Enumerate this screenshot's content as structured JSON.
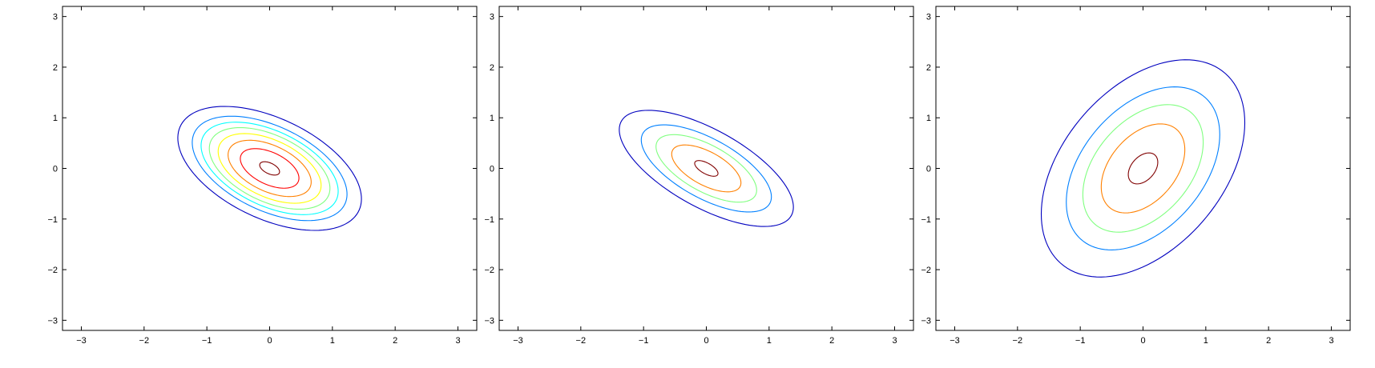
{
  "chart_data": [
    {
      "type": "contour",
      "title": "",
      "xlabel": "",
      "ylabel": "",
      "xlim": [
        -3.3,
        3.3
      ],
      "ylim": [
        -3.2,
        3.2
      ],
      "xticks": [
        -3,
        -2,
        -1,
        0,
        1,
        2,
        3
      ],
      "yticks": [
        -3,
        -2,
        -1,
        0,
        1,
        2,
        3
      ],
      "grid": false,
      "center": [
        0,
        0
      ],
      "orientation_deg": -35,
      "levels": [
        {
          "color": "#800000",
          "semi_axes": [
            0.18,
            0.1
          ]
        },
        {
          "color": "#ff0000",
          "semi_axes": [
            0.53,
            0.3
          ]
        },
        {
          "color": "#ff8000",
          "semi_axes": [
            0.75,
            0.43
          ]
        },
        {
          "color": "#ffff00",
          "semi_axes": [
            0.93,
            0.53
          ]
        },
        {
          "color": "#80ff80",
          "semi_axes": [
            1.09,
            0.62
          ]
        },
        {
          "color": "#00ffff",
          "semi_axes": [
            1.24,
            0.7
          ]
        },
        {
          "color": "#0080ff",
          "semi_axes": [
            1.4,
            0.79
          ]
        },
        {
          "color": "#0000bf",
          "semi_axes": [
            1.66,
            0.94
          ]
        }
      ]
    },
    {
      "type": "contour",
      "title": "",
      "xlabel": "",
      "ylabel": "",
      "xlim": [
        -3.3,
        3.3
      ],
      "ylim": [
        -3.2,
        3.2
      ],
      "xticks": [
        -3,
        -2,
        -1,
        0,
        1,
        2,
        3
      ],
      "yticks": [
        -3,
        -2,
        -1,
        0,
        1,
        2,
        3
      ],
      "grid": false,
      "center": [
        0,
        0
      ],
      "orientation_deg": -37,
      "levels": [
        {
          "color": "#800000",
          "semi_axes": [
            0.22,
            0.1
          ]
        },
        {
          "color": "#ff8000",
          "semi_axes": [
            0.65,
            0.31
          ]
        },
        {
          "color": "#80ff80",
          "semi_axes": [
            0.95,
            0.43
          ]
        },
        {
          "color": "#0080ff",
          "semi_axes": [
            1.23,
            0.55
          ]
        },
        {
          "color": "#0000bf",
          "semi_axes": [
            1.65,
            0.72
          ]
        }
      ]
    },
    {
      "type": "contour",
      "title": "",
      "xlabel": "",
      "ylabel": "",
      "xlim": [
        -3.3,
        3.3
      ],
      "ylim": [
        -3.2,
        3.2
      ],
      "xticks": [
        -3,
        -2,
        -1,
        0,
        1,
        2,
        3
      ],
      "yticks": [
        -3,
        -2,
        -1,
        0,
        1,
        2,
        3
      ],
      "grid": false,
      "center": [
        0,
        0
      ],
      "orientation_deg": 62,
      "levels": [
        {
          "color": "#800000",
          "semi_axes": [
            0.33,
            0.2
          ]
        },
        {
          "color": "#ff8000",
          "semi_axes": [
            0.95,
            0.56
          ]
        },
        {
          "color": "#80ff80",
          "semi_axes": [
            1.36,
            0.81
          ]
        },
        {
          "color": "#0080ff",
          "semi_axes": [
            1.74,
            1.03
          ]
        },
        {
          "color": "#0000bf",
          "semi_axes": [
            2.32,
            1.36
          ]
        }
      ]
    }
  ]
}
